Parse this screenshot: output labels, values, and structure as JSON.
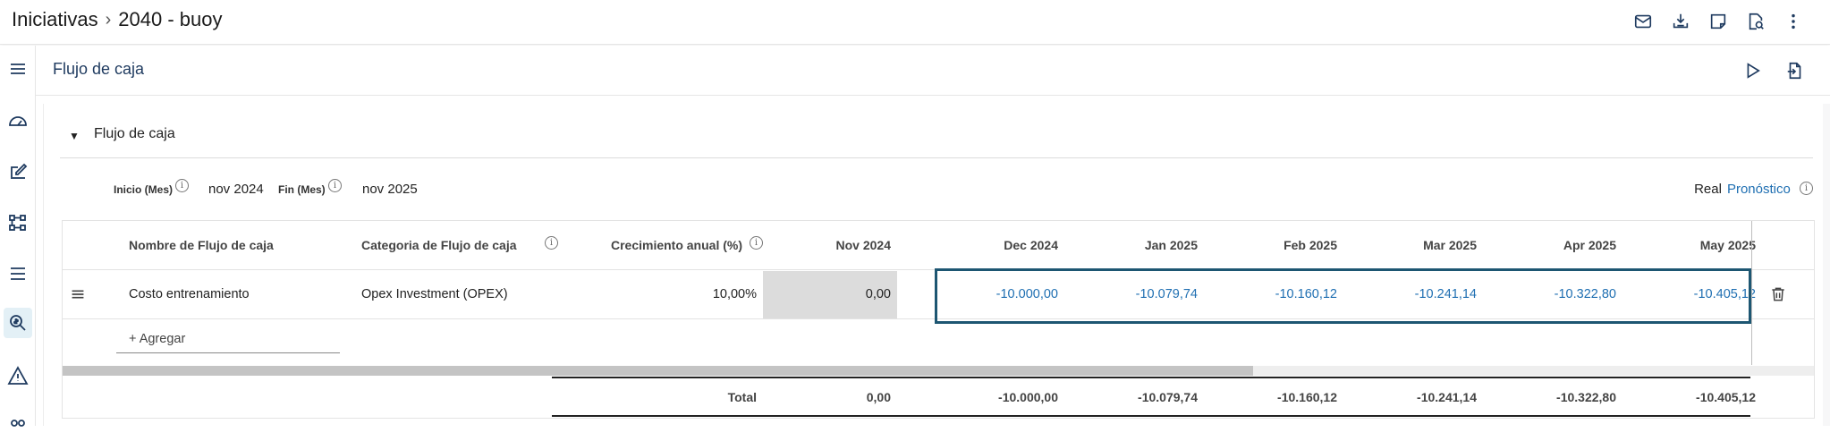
{
  "header": {
    "breadcrumb_root": "Iniciativas",
    "breadcrumb_current": "2040 - buoy",
    "actions": [
      "mail-icon",
      "download-icon",
      "note-icon",
      "document-search-icon",
      "more-vertical-icon"
    ]
  },
  "rail": {
    "items": [
      "menu-icon",
      "dashboard-icon",
      "edit-icon",
      "hierarchy-icon",
      "list-icon",
      "search-money-icon",
      "warning-icon"
    ],
    "active": "search-money-icon"
  },
  "section": {
    "title": "Flujo de caja",
    "actions": [
      "play-icon",
      "export-icon"
    ]
  },
  "panel": {
    "title": "Flujo de caja",
    "start_label": "Inicio (Mes)",
    "start_value": "nov 2024",
    "end_label": "Fin (Mes)",
    "end_value": "nov 2025",
    "mode_real": "Real",
    "mode_forecast": "Pronóstico"
  },
  "table": {
    "headers": {
      "name": "Nombre de Flujo de caja",
      "category": "Categoria de Flujo de caja",
      "growth": "Crecimiento anual (%)",
      "months": [
        "Nov 2024",
        "Dec 2024",
        "Jan 2025",
        "Feb 2025",
        "Mar 2025",
        "Apr 2025",
        "May 2025"
      ]
    },
    "rows": [
      {
        "name": "Costo entrenamiento",
        "category": "Opex Investment (OPEX)",
        "growth": "10,00%",
        "values": [
          "0,00",
          "-10.000,00",
          "-10.079,74",
          "-10.160,12",
          "-10.241,14",
          "-10.322,80",
          "-10.405,12"
        ]
      }
    ],
    "add_label": "+ Agregar",
    "total_label": "Total",
    "totals": [
      "0,00",
      "-10.000,00",
      "-10.079,74",
      "-10.160,12",
      "-10.241,14",
      "-10.322,80",
      "-10.405,12"
    ],
    "scroll_fraction": 0.68
  },
  "colors": {
    "accent": "#1f6fb2",
    "highlight_border": "#1d5672",
    "icon": "#1e3a5f"
  }
}
